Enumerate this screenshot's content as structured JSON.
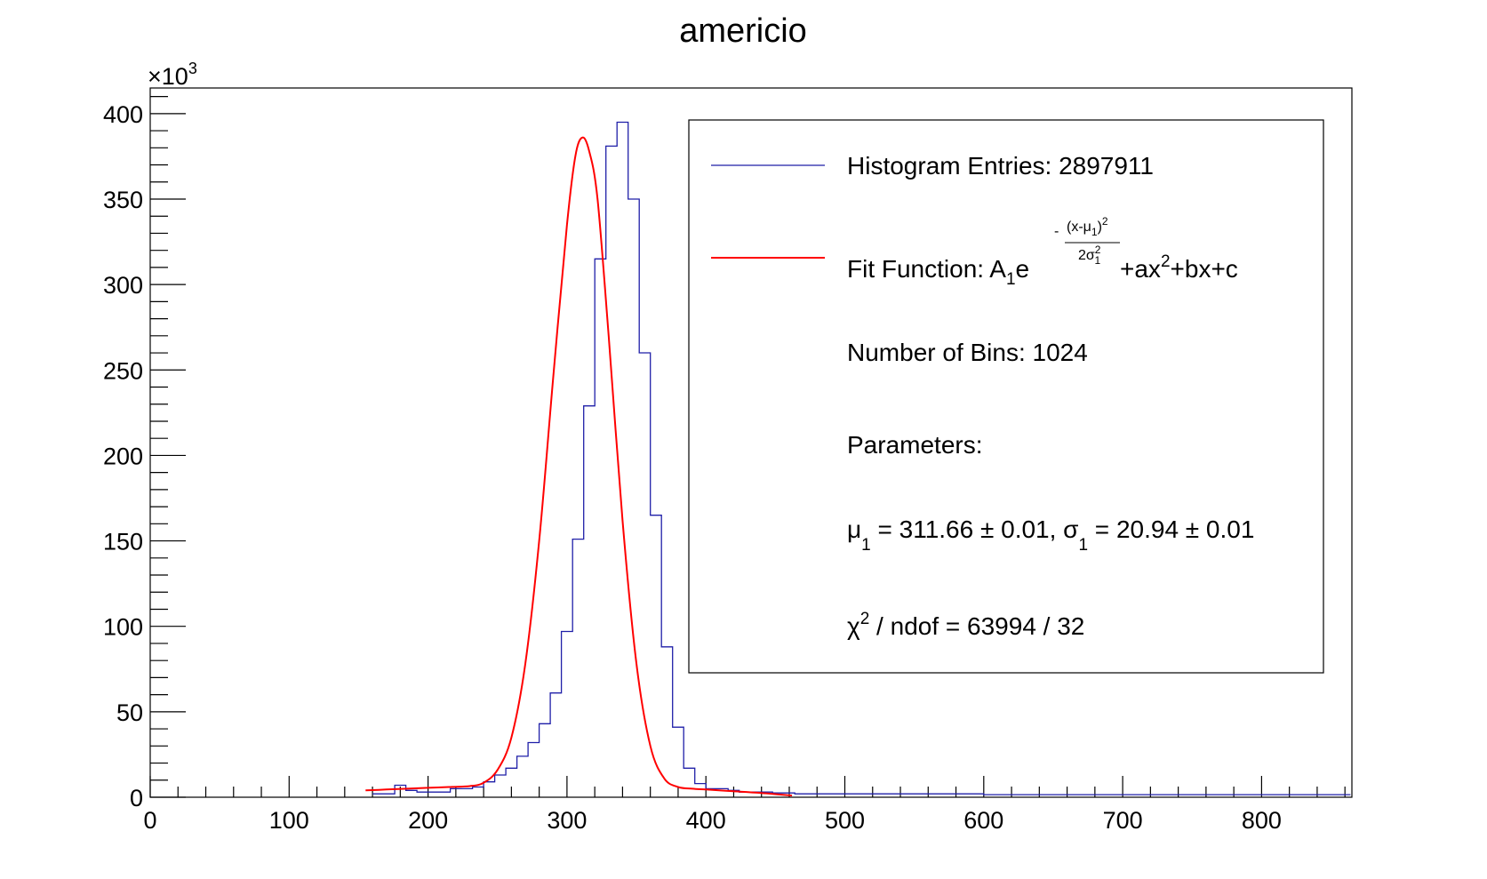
{
  "chart_data": {
    "type": "bar",
    "title": "americio",
    "xlabel": "",
    "ylabel": "",
    "xlim": [
      0,
      865
    ],
    "ylim": [
      0,
      415000
    ],
    "y_multiplier_text": "×10",
    "y_multiplier_exp": "3",
    "x_ticks": [
      0,
      100,
      200,
      300,
      400,
      500,
      600,
      700,
      800
    ],
    "y_ticks": [
      0,
      50,
      100,
      150,
      200,
      250,
      300,
      350,
      400
    ],
    "x_tick_labels": [
      "0",
      "100",
      "200",
      "300",
      "400",
      "500",
      "600",
      "700",
      "800"
    ],
    "y_tick_labels": [
      "0",
      "50",
      "100",
      "150",
      "200",
      "250",
      "300",
      "350",
      "400"
    ],
    "grid": false,
    "legend_position": "top-right",
    "series": [
      {
        "name": "Histogram Entries: 2897911",
        "kind": "step",
        "color": "#1f1fa8",
        "bin_width": 8,
        "bin_start": 160,
        "values": [
          2000,
          2000,
          7000,
          4000,
          3000,
          3000,
          3000,
          5000,
          5000,
          6000,
          9000,
          13000,
          17000,
          24000,
          32000,
          43000,
          61000,
          97000,
          151000,
          229000,
          315000,
          381000,
          395000,
          350000,
          260000,
          165000,
          88000,
          41000,
          17000,
          8000,
          5000,
          5000,
          4000,
          3000,
          3000,
          3000,
          2500,
          2500,
          2000,
          2000,
          2000,
          2000,
          2000,
          2000,
          2000,
          2000,
          2000,
          2000,
          2000,
          2000,
          2000,
          2000,
          2000,
          2000,
          2000,
          1500,
          1500,
          1500,
          1500,
          1500,
          1500,
          1500,
          1500,
          1500,
          1500,
          1500,
          1500,
          1500,
          1500,
          1500,
          1500,
          1500,
          1500,
          1500,
          1500,
          1500,
          1500,
          1500,
          1500,
          1500,
          1500,
          1500,
          1500,
          1500,
          1500,
          1500,
          1500,
          1500,
          1500,
          1500,
          1500,
          1500,
          1500,
          1500,
          1500,
          1500,
          1500,
          1500,
          1500,
          1500,
          1500,
          1500,
          500,
          500,
          500,
          500,
          500,
          500,
          500,
          500,
          500,
          500,
          500,
          500,
          500,
          500,
          500,
          500,
          500,
          500,
          500,
          500,
          500,
          500,
          500,
          500,
          500,
          500,
          500
        ]
      },
      {
        "name": "Fit Function",
        "kind": "line",
        "color": "#ff0000",
        "x": [
          155,
          170,
          185,
          200,
          215,
          230,
          240,
          250,
          260,
          270,
          280,
          290,
          300,
          306,
          311,
          316,
          322,
          330,
          340,
          350,
          360,
          370,
          380,
          390,
          400,
          420,
          440,
          462
        ],
        "y": [
          4000,
          4500,
          5000,
          5500,
          6000,
          6500,
          8500,
          16000,
          35000,
          78000,
          150000,
          245000,
          335000,
          375000,
          386000,
          378000,
          350000,
          270000,
          162000,
          78000,
          30000,
          11000,
          6000,
          5000,
          4500,
          3500,
          2500,
          1000
        ]
      }
    ]
  },
  "legend": {
    "entries_text": "Histogram Entries: 2897911",
    "fit_prefix": "Fit Function: A",
    "fit_a_sub": "1",
    "fit_e": "e",
    "fit_exp_sign": "-",
    "fit_exp_num": "(x-μ",
    "fit_exp_num_sub": "1",
    "fit_exp_num_close": ")",
    "fit_exp_num_sup": "2",
    "fit_exp_den": "2σ",
    "fit_exp_den_sup": "2",
    "fit_exp_den_sub": "1",
    "fit_poly": "+ax",
    "fit_poly_sup": "2",
    "fit_poly_end": "+bx+c",
    "bins_text": "Number of Bins: 1024",
    "params_text": "Parameters:",
    "mu_symbol": "μ",
    "mu_sub": "1",
    "mu_value": " = 311.66 ± 0.01, σ",
    "sigma_sub": "1",
    "sigma_value": " = 20.94 ± 0.01",
    "chi_symbol": "χ",
    "chi_sup": "2",
    "chi_value": " / ndof = 63994 / 32"
  }
}
